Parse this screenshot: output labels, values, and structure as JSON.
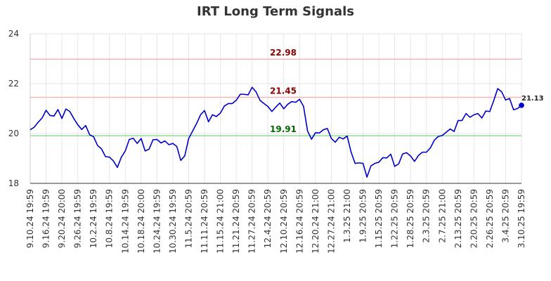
{
  "chart_data": {
    "type": "line",
    "title": "IRT Long Term Signals",
    "xlabel": "",
    "ylabel": "",
    "ylim": [
      18,
      24
    ],
    "y_ticks": [
      18,
      20,
      22,
      24
    ],
    "x_tick_labels": [
      "9.10.24 19:59",
      "9.16.24 19:59",
      "9.20.24 20:00",
      "9.26.24 19:59",
      "10.2.24 19:59",
      "10.8.24 19:59",
      "10.14.24 19:59",
      "10.18.24 20:00",
      "10.24.24 19:59",
      "10.30.24 19:59",
      "11.5.24 20:59",
      "11.11.24 20:59",
      "11.15.24 21:00",
      "11.21.24 20:59",
      "11.27.24 20:59",
      "12.4.24 20:59",
      "12.10.24 20:59",
      "12.16.24 20:59",
      "12.20.24 21:00",
      "12.27.24 21:00",
      "1.3.25 21:00",
      "1.9.25 20:59",
      "1.15.25 20:59",
      "1.22.25 20:59",
      "1.28.25 20:59",
      "2.3.25 20:59",
      "2.7.25 21:00",
      "2.13.25 20:59",
      "2.20.25 20:59",
      "2.26.25 20:59",
      "3.4.25 20:59",
      "3.10.25 19:59"
    ],
    "grid": true,
    "reference_lines": [
      {
        "value": 22.98,
        "label": "22.98",
        "color": "#f4b6b6",
        "label_color": "#8b0000"
      },
      {
        "value": 21.45,
        "label": "21.45",
        "color": "#f4b6b6",
        "label_color": "#8b0000"
      },
      {
        "value": 19.91,
        "label": "19.91",
        "color": "#90dd90",
        "label_color": "#006400"
      }
    ],
    "last_value_label": "21.13",
    "line_color": "#0000cc",
    "series": [
      {
        "values": [
          20.15,
          20.25,
          20.45,
          20.62,
          20.93,
          20.72,
          20.7,
          20.96,
          20.6,
          20.98,
          20.88,
          20.6,
          20.35,
          20.16,
          20.32,
          19.95,
          19.87,
          19.52,
          19.38,
          19.07,
          19.05,
          18.9,
          18.64,
          19.05,
          19.3,
          19.76,
          19.81,
          19.6,
          19.8,
          19.3,
          19.37,
          19.75,
          19.76,
          19.62,
          19.7,
          19.55,
          19.6,
          19.48,
          18.92,
          19.1,
          19.8,
          20.1,
          20.4,
          20.75,
          20.92,
          20.47,
          20.75,
          20.68,
          20.82,
          21.1,
          21.2,
          21.2,
          21.33,
          21.57,
          21.57,
          21.55,
          21.85,
          21.67,
          21.33,
          21.2,
          21.08,
          20.88,
          21.06,
          21.22,
          20.99,
          21.17,
          21.28,
          21.25,
          21.37,
          21.08,
          20.1,
          19.77,
          20.03,
          20.02,
          20.15,
          20.2,
          19.8,
          19.65,
          19.85,
          19.78,
          19.9,
          19.25,
          18.8,
          18.82,
          18.8,
          18.25,
          18.7,
          18.8,
          18.85,
          19.03,
          19.02,
          19.17,
          18.68,
          18.78,
          19.18,
          19.23,
          19.1,
          18.88,
          19.12,
          19.25,
          19.25,
          19.42,
          19.73,
          19.88,
          19.92,
          20.05,
          20.18,
          20.08,
          20.52,
          20.52,
          20.8,
          20.65,
          20.75,
          20.8,
          20.62,
          20.9,
          20.88,
          21.32,
          21.8,
          21.67,
          21.34,
          21.4,
          20.95,
          21.0,
          21.13
        ]
      }
    ]
  }
}
